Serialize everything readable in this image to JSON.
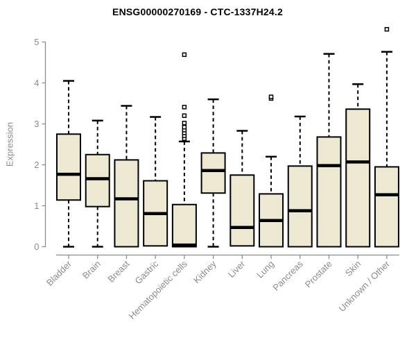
{
  "chart_data": {
    "type": "boxplot",
    "title": "ENSG00000270169 - CTC-1337H24.2",
    "ylabel": "Expression",
    "xlabel": "",
    "ylim": [
      0,
      5
    ],
    "yticks": [
      0,
      1,
      2,
      3,
      4,
      5
    ],
    "grid": false,
    "legend": false,
    "categories": [
      "Bladder",
      "Brain",
      "Breast",
      "Gastric",
      "Hematopoietic cells",
      "Kidney",
      "Liver",
      "Lung",
      "Pancreas",
      "Prostate",
      "Skin",
      "Unknown / Other"
    ],
    "boxes": [
      {
        "category": "Bladder",
        "whislo": 0,
        "q1": 1.14,
        "med": 1.77,
        "q3": 2.75,
        "whishi": 4.05,
        "outliers": []
      },
      {
        "category": "Brain",
        "whislo": 0,
        "q1": 0.98,
        "med": 1.66,
        "q3": 2.25,
        "whishi": 3.08,
        "outliers": []
      },
      {
        "category": "Breast",
        "whislo": 0,
        "q1": 0.0,
        "med": 1.17,
        "q3": 2.12,
        "whishi": 3.44,
        "outliers": []
      },
      {
        "category": "Gastric",
        "whislo": 0.02,
        "q1": 0.02,
        "med": 0.81,
        "q3": 1.61,
        "whishi": 3.17,
        "outliers": []
      },
      {
        "category": "Hematopoietic cells",
        "whislo": 0,
        "q1": 0.0,
        "med": 0.04,
        "q3": 1.03,
        "whishi": 2.57,
        "outliers": [
          2.64,
          2.71,
          2.78,
          2.85,
          2.92,
          3.02,
          3.2,
          3.41,
          4.69
        ]
      },
      {
        "category": "Kidney",
        "whislo": 0,
        "q1": 1.31,
        "med": 1.86,
        "q3": 2.29,
        "whishi": 3.6,
        "outliers": []
      },
      {
        "category": "Liver",
        "whislo": 0.02,
        "q1": 0.02,
        "med": 0.47,
        "q3": 1.75,
        "whishi": 2.83,
        "outliers": []
      },
      {
        "category": "Lung",
        "whislo": 0,
        "q1": 0.0,
        "med": 0.64,
        "q3": 1.29,
        "whishi": 2.2,
        "outliers": [
          3.62,
          3.66
        ]
      },
      {
        "category": "Pancreas",
        "whislo": 0,
        "q1": 0.0,
        "med": 0.88,
        "q3": 1.97,
        "whishi": 3.18,
        "outliers": []
      },
      {
        "category": "Prostate",
        "whislo": 0,
        "q1": 0.0,
        "med": 1.98,
        "q3": 2.68,
        "whishi": 4.71,
        "outliers": []
      },
      {
        "category": "Skin",
        "whislo": 0,
        "q1": 0.0,
        "med": 2.07,
        "q3": 3.36,
        "whishi": 3.97,
        "outliers": []
      },
      {
        "category": "Unknown / Other",
        "whislo": 0,
        "q1": 0.0,
        "med": 1.27,
        "q3": 1.95,
        "whishi": 4.76,
        "outliers": [
          5.31
        ]
      }
    ],
    "colors": {
      "box_fill": "#EDE8D1",
      "box_stroke": "#000000",
      "median": "#000000",
      "whisker": "#000000",
      "outlier_stroke": "#000000",
      "outlier_fill": "#FFFFFF",
      "axis": "#8B8B8B",
      "tick_label": "#8B8B8B",
      "title": "#000000",
      "background": "#FFFFFF"
    }
  }
}
